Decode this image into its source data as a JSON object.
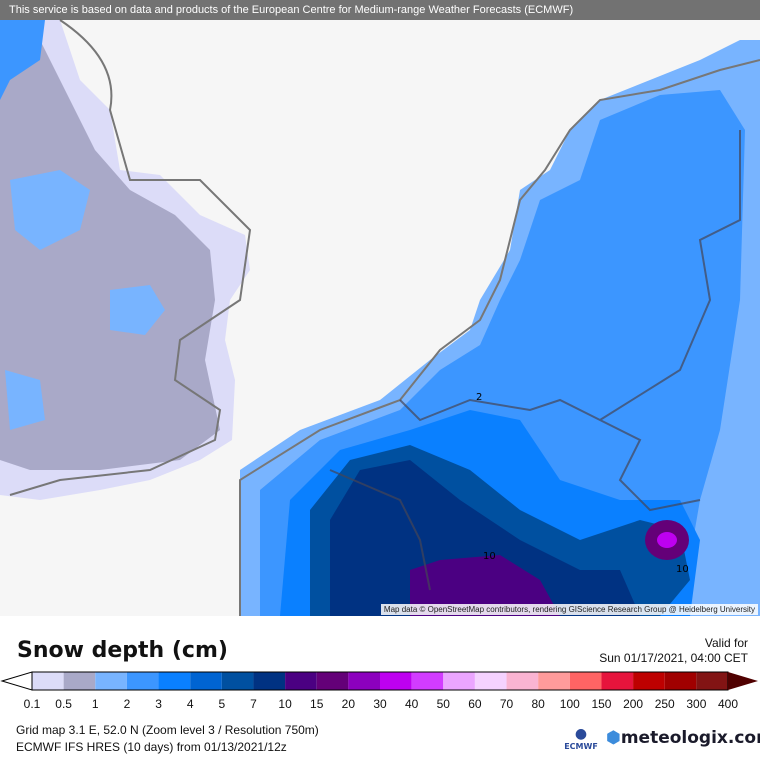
{
  "banner": "This service is based on data and products of the European Centre for Medium-range Weather Forecasts (ECMWF)",
  "attribution": "Map data © OpenStreetMap contributors, rendering GIScience Research Group @ Heidelberg University",
  "contour_labels": [
    "2",
    "10",
    "10"
  ],
  "title": "Snow depth (cm)",
  "valid": {
    "label": "Valid for",
    "datetime": "Sun 01/17/2021, 04:00 CET"
  },
  "legend": {
    "labels": [
      "0.1",
      "0.5",
      "1",
      "2",
      "3",
      "4",
      "5",
      "7",
      "10",
      "15",
      "20",
      "30",
      "40",
      "50",
      "60",
      "70",
      "80",
      "100",
      "150",
      "200",
      "250",
      "300",
      "400"
    ],
    "colors": [
      "#dcdcf8",
      "#a9a9c8",
      "#78b4ff",
      "#3c96ff",
      "#0a80ff",
      "#0064d2",
      "#0050a0",
      "#003282",
      "#4b0082",
      "#640078",
      "#8c00be",
      "#be00f0",
      "#d23cff",
      "#eba5ff",
      "#f5d2ff",
      "#fab4d2",
      "#ff9b9b",
      "#ff6464",
      "#e6143c",
      "#be0000",
      "#a00000",
      "#821414"
    ],
    "low_arrow_color": "#ffffff",
    "high_arrow_color": "#500000"
  },
  "info": {
    "line1": "Grid map 3.1 E, 52.0 N (Zoom level 3 / Resolution 750m)",
    "line2": "ECMWF IFS HRES (10 days) from  01/13/2021/12z"
  },
  "logos": {
    "ecmwf": "ECMWF",
    "meteologix": "meteologix.com"
  }
}
